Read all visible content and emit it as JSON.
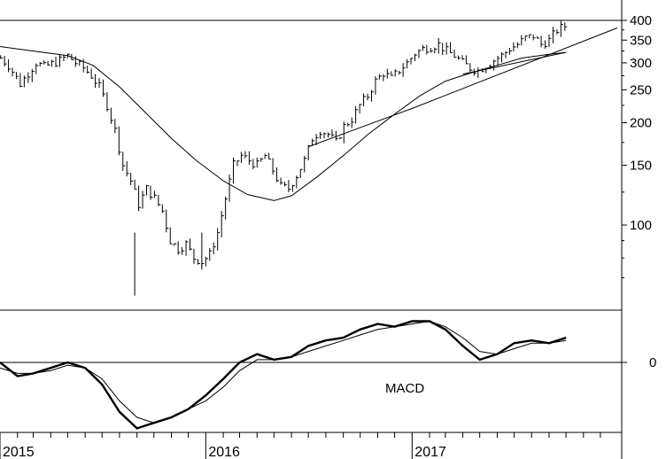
{
  "chart_data": [
    {
      "type": "ohlc",
      "panel": "price",
      "scale": "log",
      "ylim": [
        60,
        420
      ],
      "yticks": [
        "400",
        "350",
        "300",
        "250",
        "200",
        "150",
        "100"
      ],
      "ytick_values": [
        400,
        350,
        300,
        250,
        200,
        150,
        100
      ],
      "x_start": "2015-01-01",
      "x_end": "2017-12-31",
      "x_labels": [
        "2015",
        "2016",
        "2017"
      ],
      "horizontal_line": 400,
      "price_path": [
        [
          "2015-01-02",
          310
        ],
        [
          "2015-01-16",
          295
        ],
        [
          "2015-02-06",
          260
        ],
        [
          "2015-02-20",
          280
        ],
        [
          "2015-03-06",
          300
        ],
        [
          "2015-03-20",
          292
        ],
        [
          "2015-04-03",
          298
        ],
        [
          "2015-04-17",
          305
        ],
        [
          "2015-05-01",
          315
        ],
        [
          "2015-05-15",
          300
        ],
        [
          "2015-05-29",
          290
        ],
        [
          "2015-06-12",
          275
        ],
        [
          "2015-06-26",
          255
        ],
        [
          "2015-07-10",
          225
        ],
        [
          "2015-07-24",
          190
        ],
        [
          "2015-08-07",
          150
        ],
        [
          "2015-08-21",
          135
        ],
        [
          "2015-09-04",
          115
        ],
        [
          "2015-09-18",
          128
        ],
        [
          "2015-10-02",
          120
        ],
        [
          "2015-10-16",
          110
        ],
        [
          "2015-10-30",
          90
        ],
        [
          "2015-11-13",
          85
        ],
        [
          "2015-11-27",
          88
        ],
        [
          "2015-12-11",
          80
        ],
        [
          "2015-12-25",
          78
        ],
        [
          "2016-01-08",
          82
        ],
        [
          "2016-01-22",
          95
        ],
        [
          "2016-02-05",
          120
        ],
        [
          "2016-02-19",
          150
        ],
        [
          "2016-03-04",
          160
        ],
        [
          "2016-03-18",
          155
        ],
        [
          "2016-04-01",
          150
        ],
        [
          "2016-04-15",
          160
        ],
        [
          "2016-04-29",
          145
        ],
        [
          "2016-05-13",
          130
        ],
        [
          "2016-05-27",
          128
        ],
        [
          "2016-06-10",
          140
        ],
        [
          "2016-06-24",
          155
        ],
        [
          "2016-07-08",
          180
        ],
        [
          "2016-07-22",
          190
        ],
        [
          "2016-08-05",
          185
        ],
        [
          "2016-08-19",
          175
        ],
        [
          "2016-09-02",
          195
        ],
        [
          "2016-09-16",
          205
        ],
        [
          "2016-09-30",
          225
        ],
        [
          "2016-10-14",
          240
        ],
        [
          "2016-10-28",
          265
        ],
        [
          "2016-11-11",
          280
        ],
        [
          "2016-11-25",
          270
        ],
        [
          "2016-12-09",
          285
        ],
        [
          "2016-12-23",
          300
        ],
        [
          "2017-01-06",
          320
        ],
        [
          "2017-01-20",
          330
        ],
        [
          "2017-02-03",
          335
        ],
        [
          "2017-02-17",
          340
        ],
        [
          "2017-03-03",
          325
        ],
        [
          "2017-03-17",
          315
        ],
        [
          "2017-03-31",
          300
        ],
        [
          "2017-04-14",
          290
        ],
        [
          "2017-04-28",
          285
        ],
        [
          "2017-05-12",
          295
        ],
        [
          "2017-05-26",
          305
        ],
        [
          "2017-06-09",
          315
        ],
        [
          "2017-06-23",
          330
        ],
        [
          "2017-07-07",
          340
        ],
        [
          "2017-07-21",
          355
        ],
        [
          "2017-08-04",
          360
        ],
        [
          "2017-08-18",
          340
        ],
        [
          "2017-09-01",
          350
        ],
        [
          "2017-09-15",
          375
        ],
        [
          "2017-09-29",
          385
        ]
      ],
      "moving_average": [
        [
          "2015-01-01",
          335
        ],
        [
          "2015-03-01",
          325
        ],
        [
          "2015-05-01",
          315
        ],
        [
          "2015-06-15",
          295
        ],
        [
          "2015-08-01",
          255
        ],
        [
          "2015-09-15",
          215
        ],
        [
          "2015-11-01",
          180
        ],
        [
          "2015-12-15",
          155
        ],
        [
          "2016-02-01",
          135
        ],
        [
          "2016-03-15",
          123
        ],
        [
          "2016-05-01",
          118
        ],
        [
          "2016-06-01",
          122
        ],
        [
          "2016-07-15",
          138
        ],
        [
          "2016-09-01",
          160
        ],
        [
          "2016-10-15",
          185
        ],
        [
          "2016-12-01",
          212
        ],
        [
          "2017-01-15",
          240
        ],
        [
          "2017-03-01",
          265
        ],
        [
          "2017-04-15",
          280
        ],
        [
          "2017-06-01",
          295
        ],
        [
          "2017-07-15",
          310
        ],
        [
          "2017-09-01",
          318
        ],
        [
          "2017-10-01",
          322
        ]
      ],
      "trendlines": [
        [
          [
            "2016-07-01",
            170
          ],
          [
            "2016-12-31",
            220
          ],
          [
            "2017-12-31",
            380
          ]
        ],
        [
          [
            "2017-04-01",
            278
          ],
          [
            "2017-10-01",
            322
          ]
        ]
      ]
    },
    {
      "type": "line",
      "panel": "indicator",
      "label": "MACD",
      "ylim": [
        -25,
        20
      ],
      "yticks": [
        "0"
      ],
      "ytick_values": [
        0
      ],
      "series": [
        {
          "role": "macd",
          "points": [
            [
              "2015-01-01",
              0
            ],
            [
              "2015-02-01",
              -5
            ],
            [
              "2015-03-01",
              -4
            ],
            [
              "2015-04-01",
              -2
            ],
            [
              "2015-05-01",
              0
            ],
            [
              "2015-06-01",
              -2
            ],
            [
              "2015-07-01",
              -8
            ],
            [
              "2015-08-01",
              -18
            ],
            [
              "2015-09-01",
              -24
            ],
            [
              "2015-10-01",
              -22
            ],
            [
              "2015-11-01",
              -20
            ],
            [
              "2015-12-01",
              -17
            ],
            [
              "2016-01-01",
              -12
            ],
            [
              "2016-02-01",
              -6
            ],
            [
              "2016-03-01",
              0
            ],
            [
              "2016-04-01",
              3
            ],
            [
              "2016-05-01",
              1
            ],
            [
              "2016-06-01",
              2
            ],
            [
              "2016-07-01",
              6
            ],
            [
              "2016-08-01",
              8
            ],
            [
              "2016-09-01",
              9
            ],
            [
              "2016-10-01",
              12
            ],
            [
              "2016-11-01",
              14
            ],
            [
              "2016-12-01",
              13
            ],
            [
              "2017-01-01",
              15
            ],
            [
              "2017-02-01",
              15
            ],
            [
              "2017-03-01",
              12
            ],
            [
              "2017-04-01",
              6
            ],
            [
              "2017-05-01",
              1
            ],
            [
              "2017-06-01",
              3
            ],
            [
              "2017-07-01",
              7
            ],
            [
              "2017-08-01",
              8
            ],
            [
              "2017-09-01",
              7
            ],
            [
              "2017-10-01",
              9
            ]
          ]
        },
        {
          "role": "signal",
          "points": [
            [
              "2015-01-01",
              -2
            ],
            [
              "2015-02-01",
              -4
            ],
            [
              "2015-03-01",
              -4
            ],
            [
              "2015-04-01",
              -3
            ],
            [
              "2015-05-01",
              -1
            ],
            [
              "2015-06-01",
              -2
            ],
            [
              "2015-07-01",
              -6
            ],
            [
              "2015-08-01",
              -14
            ],
            [
              "2015-09-01",
              -20
            ],
            [
              "2015-10-01",
              -22
            ],
            [
              "2015-11-01",
              -20
            ],
            [
              "2015-12-01",
              -17
            ],
            [
              "2016-01-01",
              -14
            ],
            [
              "2016-02-01",
              -9
            ],
            [
              "2016-03-01",
              -3
            ],
            [
              "2016-04-01",
              1
            ],
            [
              "2016-05-01",
              1
            ],
            [
              "2016-06-01",
              2
            ],
            [
              "2016-07-01",
              4
            ],
            [
              "2016-08-01",
              6
            ],
            [
              "2016-09-01",
              8
            ],
            [
              "2016-10-01",
              10
            ],
            [
              "2016-11-01",
              12
            ],
            [
              "2016-12-01",
              13
            ],
            [
              "2017-01-01",
              14
            ],
            [
              "2017-02-01",
              15
            ],
            [
              "2017-03-01",
              13
            ],
            [
              "2017-04-01",
              9
            ],
            [
              "2017-05-01",
              4
            ],
            [
              "2017-06-01",
              3
            ],
            [
              "2017-07-01",
              5
            ],
            [
              "2017-08-01",
              7
            ],
            [
              "2017-09-01",
              7
            ],
            [
              "2017-10-01",
              8
            ]
          ]
        }
      ]
    }
  ]
}
